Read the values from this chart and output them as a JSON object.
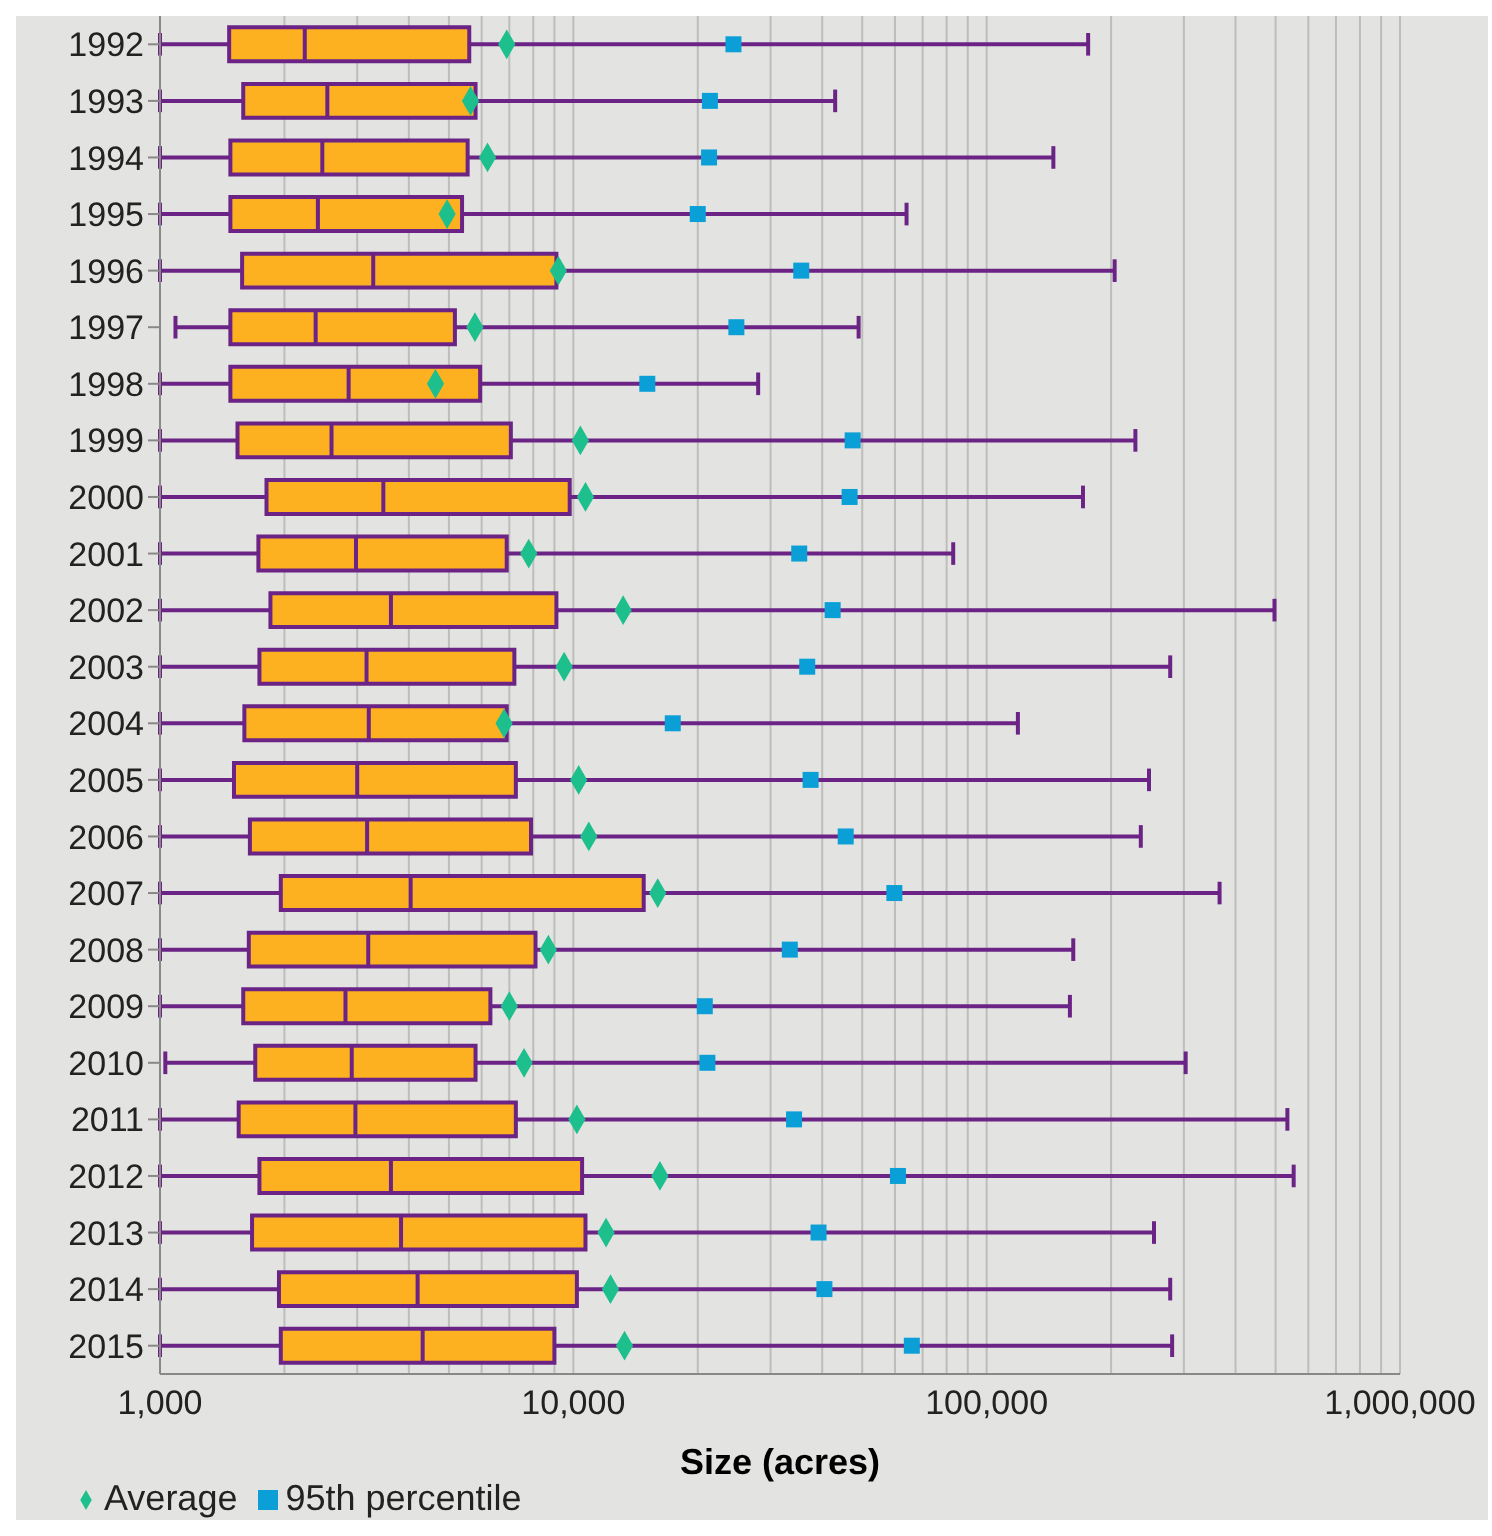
{
  "chart_data": {
    "type": "box",
    "orientation": "horizontal",
    "xlabel": "Size (acres)",
    "log": "x",
    "grid": "x",
    "legend": "bottom left",
    "categories": [
      "1992",
      "1993",
      "1994",
      "1995",
      "1996",
      "1997",
      "1998",
      "1999",
      "2000",
      "2001",
      "2002",
      "2003",
      "2004",
      "2005",
      "2006",
      "2007",
      "2008",
      "2009",
      "2010",
      "2011",
      "2012",
      "2013",
      "2014",
      "2015"
    ],
    "xlim": [
      1000,
      1000000
    ],
    "xticks": [
      {
        "value": 1000,
        "label": "1,000"
      },
      {
        "value": 2000,
        "label": null
      },
      {
        "value": 3000,
        "label": null
      },
      {
        "value": 4000,
        "label": null
      },
      {
        "value": 5000,
        "label": null
      },
      {
        "value": 6000,
        "label": null
      },
      {
        "value": 7000,
        "label": null
      },
      {
        "value": 8000,
        "label": null
      },
      {
        "value": 9000,
        "label": null
      },
      {
        "value": 10000,
        "label": "10,000"
      },
      {
        "value": 20000,
        "label": null
      },
      {
        "value": 30000,
        "label": null
      },
      {
        "value": 40000,
        "label": null
      },
      {
        "value": 50000,
        "label": null
      },
      {
        "value": 60000,
        "label": null
      },
      {
        "value": 70000,
        "label": null
      },
      {
        "value": 80000,
        "label": null
      },
      {
        "value": 90000,
        "label": null
      },
      {
        "value": 100000,
        "label": "100,000"
      },
      {
        "value": 200000,
        "label": null
      },
      {
        "value": 300000,
        "label": null
      },
      {
        "value": 400000,
        "label": null
      },
      {
        "value": 500000,
        "label": null
      },
      {
        "value": 600000,
        "label": null
      },
      {
        "value": 700000,
        "label": null
      },
      {
        "value": 800000,
        "label": null
      },
      {
        "value": 900000,
        "label": null
      },
      {
        "value": 1000000,
        "label": "1,000,000"
      }
    ],
    "series": [
      {
        "type": "box",
        "color": "#fdb120",
        "boxes": [
          {
            "low": 1000,
            "q1": 1470,
            "median": 2240,
            "q3": 5600,
            "high": 176000
          },
          {
            "low": 1000,
            "q1": 1590,
            "median": 2540,
            "q3": 5800,
            "high": 43000
          },
          {
            "low": 1000,
            "q1": 1480,
            "median": 2470,
            "q3": 5550,
            "high": 145000
          },
          {
            "low": 1000,
            "q1": 1480,
            "median": 2410,
            "q3": 5380,
            "high": 64000
          },
          {
            "low": 1000,
            "q1": 1580,
            "median": 3280,
            "q3": 9100,
            "high": 204000
          },
          {
            "low": 1090,
            "q1": 1480,
            "median": 2380,
            "q3": 5170,
            "high": 49000
          },
          {
            "low": 1000,
            "q1": 1480,
            "median": 2860,
            "q3": 5950,
            "high": 28000
          },
          {
            "low": 1000,
            "q1": 1540,
            "median": 2600,
            "q3": 7060,
            "high": 229000
          },
          {
            "low": 1000,
            "q1": 1810,
            "median": 3470,
            "q3": 9800,
            "high": 171000
          },
          {
            "low": 1000,
            "q1": 1730,
            "median": 2980,
            "q3": 6900,
            "high": 83000
          },
          {
            "low": 1000,
            "q1": 1850,
            "median": 3620,
            "q3": 9100,
            "high": 497000
          },
          {
            "low": 1000,
            "q1": 1740,
            "median": 3160,
            "q3": 7200,
            "high": 278000
          },
          {
            "low": 1000,
            "q1": 1600,
            "median": 3200,
            "q3": 6900,
            "high": 119000
          },
          {
            "low": 1000,
            "q1": 1510,
            "median": 3000,
            "q3": 7260,
            "high": 247000
          },
          {
            "low": 1000,
            "q1": 1650,
            "median": 3170,
            "q3": 7900,
            "high": 236000
          },
          {
            "low": 1000,
            "q1": 1960,
            "median": 4040,
            "q3": 14800,
            "high": 366000
          },
          {
            "low": 1000,
            "q1": 1640,
            "median": 3190,
            "q3": 8100,
            "high": 162000
          },
          {
            "low": 1000,
            "q1": 1590,
            "median": 2810,
            "q3": 6300,
            "high": 159000
          },
          {
            "low": 1030,
            "q1": 1700,
            "median": 2910,
            "q3": 5800,
            "high": 303000
          },
          {
            "low": 1000,
            "q1": 1550,
            "median": 2970,
            "q3": 7260,
            "high": 534000
          },
          {
            "low": 1000,
            "q1": 1740,
            "median": 3620,
            "q3": 10500,
            "high": 553000
          },
          {
            "low": 1000,
            "q1": 1670,
            "median": 3830,
            "q3": 10700,
            "high": 254000
          },
          {
            "low": 1000,
            "q1": 1940,
            "median": 4200,
            "q3": 10200,
            "high": 278000
          },
          {
            "low": 1000,
            "q1": 1960,
            "median": 4320,
            "q3": 9000,
            "high": 281000
          }
        ]
      },
      {
        "type": "scatter",
        "name": "Average",
        "color": "#1dbf8c",
        "marker": "diamond",
        "values": [
          6900,
          5640,
          6200,
          4950,
          9200,
          5780,
          4640,
          10400,
          10700,
          7800,
          13200,
          9500,
          6800,
          10300,
          10900,
          16000,
          8700,
          7000,
          7600,
          10200,
          16200,
          12000,
          12300,
          13300
        ]
      },
      {
        "type": "scatter",
        "name": "95th percentile",
        "color": "#0a9fd6",
        "marker": "square",
        "values": [
          24400,
          21400,
          21300,
          20000,
          35600,
          24800,
          15100,
          47400,
          46600,
          35200,
          42400,
          36800,
          17400,
          37500,
          45600,
          59800,
          33400,
          20800,
          21100,
          34200,
          61000,
          39200,
          40500,
          65900
        ]
      }
    ]
  }
}
